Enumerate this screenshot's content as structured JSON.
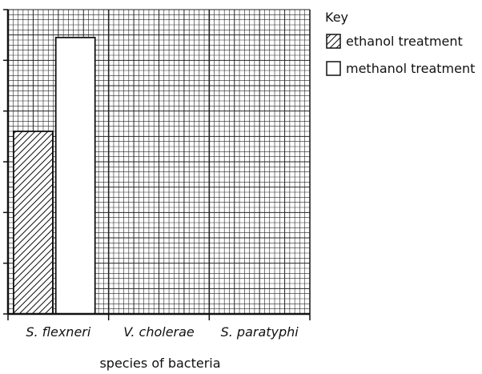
{
  "chart_data": {
    "type": "bar",
    "categories": [
      "S. flexneri",
      "V. cholerae",
      "S. paratyphi"
    ],
    "xlabel": "species of bacteria",
    "ylabel": "",
    "title": "",
    "ylim": [
      0,
      6
    ],
    "yticks": [
      0,
      1,
      2,
      3,
      4,
      5,
      6
    ],
    "y_tick_labels_shown": false,
    "grid": true,
    "legend": {
      "title": "Key",
      "placement": "top-right"
    },
    "series": [
      {
        "name": "ethanol treatment",
        "fill": "hatched",
        "values": [
          3.6,
          null,
          null
        ]
      },
      {
        "name": "methanol treatment",
        "fill": "#ffffff",
        "values": [
          5.45,
          null,
          null
        ]
      }
    ],
    "colors": {
      "grid": "#222222",
      "axis": "#111111",
      "bar_outline": "#111111"
    }
  }
}
